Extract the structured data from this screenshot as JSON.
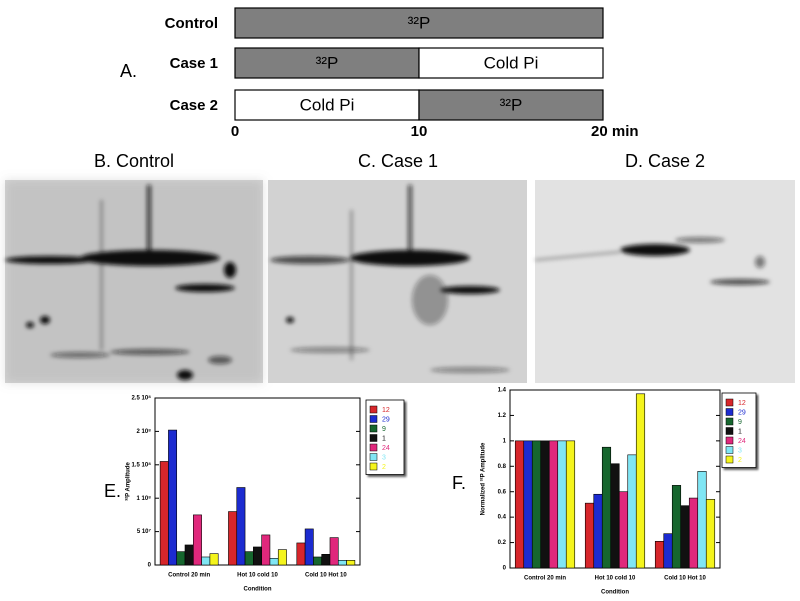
{
  "panel_a": {
    "label": "A.",
    "xlim": [
      0,
      20
    ],
    "ticks": [
      0,
      10,
      {
        "value": 20,
        "label": "20 min"
      }
    ],
    "rows": [
      {
        "name": "Control",
        "segments": [
          {
            "start": 0,
            "end": 20,
            "label": "³²P",
            "color": "#7f7f7f"
          }
        ]
      },
      {
        "name": "Case 1",
        "segments": [
          {
            "start": 0,
            "end": 10,
            "label": "³²P",
            "color": "#7f7f7f"
          },
          {
            "start": 10,
            "end": 20,
            "label": "Cold Pi",
            "color": "#ffffff"
          }
        ]
      },
      {
        "name": "Case 2",
        "segments": [
          {
            "start": 0,
            "end": 10,
            "label": "Cold Pi",
            "color": "#ffffff"
          },
          {
            "start": 10,
            "end": 20,
            "label": "³²P",
            "color": "#7f7f7f"
          }
        ]
      }
    ]
  },
  "gels": [
    {
      "title": "B. Control"
    },
    {
      "title": "C. Case 1"
    },
    {
      "title": "D. Case 2"
    }
  ],
  "chart_data": [
    {
      "type": "bar",
      "label": "E.",
      "y_label": "³²P Amplitude",
      "x_label": "Condition",
      "categories": [
        "Control 20 min",
        "Hot 10 cold 10",
        "Cold 10 Hot 10"
      ],
      "ylim": [
        0,
        250000000
      ],
      "yticks": [
        0,
        {
          "value": 50000000,
          "label": "5 10⁷"
        },
        {
          "value": 100000000,
          "label": "1 10⁸"
        },
        {
          "value": 150000000,
          "label": "1.5 10⁸"
        },
        {
          "value": 200000000,
          "label": "2 10⁸"
        },
        {
          "value": 250000000,
          "label": "2.5 10⁸"
        }
      ],
      "series": [
        {
          "name": "12",
          "color": "#d7262b",
          "values": [
            155000000,
            80000000,
            33000000
          ]
        },
        {
          "name": "29",
          "color": "#1c2bd0",
          "values": [
            202000000,
            116000000,
            54000000
          ]
        },
        {
          "name": "9",
          "color": "#16662e",
          "values": [
            20000000,
            20000000,
            12000000
          ]
        },
        {
          "name": "1",
          "color": "#111111",
          "values": [
            30000000,
            27000000,
            16000000
          ]
        },
        {
          "name": "24",
          "color": "#e0287c",
          "values": [
            75000000,
            45000000,
            41000000
          ]
        },
        {
          "name": "3",
          "color": "#80e6f4",
          "values": [
            12000000,
            10000000,
            7000000
          ]
        },
        {
          "name": "2",
          "color": "#f4f41c",
          "values": [
            17000000,
            23000000,
            7000000
          ]
        }
      ]
    },
    {
      "type": "bar",
      "label": "F.",
      "y_label": "Normalized ³²P Amplitude",
      "x_label": "Condition",
      "categories": [
        "Control 20 min",
        "Hot 10 cold 10",
        "Cold 10 Hot 10"
      ],
      "ylim": [
        0,
        1.4
      ],
      "yticks": [
        0,
        0.2,
        0.4,
        0.6,
        0.8,
        1,
        1.2,
        1.4
      ],
      "series": [
        {
          "name": "12",
          "color": "#d7262b",
          "values": [
            1,
            0.51,
            0.21
          ]
        },
        {
          "name": "29",
          "color": "#1c2bd0",
          "values": [
            1,
            0.58,
            0.27
          ]
        },
        {
          "name": "9",
          "color": "#16662e",
          "values": [
            1,
            0.95,
            0.65
          ]
        },
        {
          "name": "1",
          "color": "#111111",
          "values": [
            1,
            0.82,
            0.49
          ]
        },
        {
          "name": "24",
          "color": "#e0287c",
          "values": [
            1,
            0.6,
            0.55
          ]
        },
        {
          "name": "3",
          "color": "#80e6f4",
          "values": [
            1,
            0.89,
            0.76
          ]
        },
        {
          "name": "2",
          "color": "#f4f41c",
          "values": [
            1,
            1.37,
            0.54
          ]
        }
      ]
    }
  ]
}
